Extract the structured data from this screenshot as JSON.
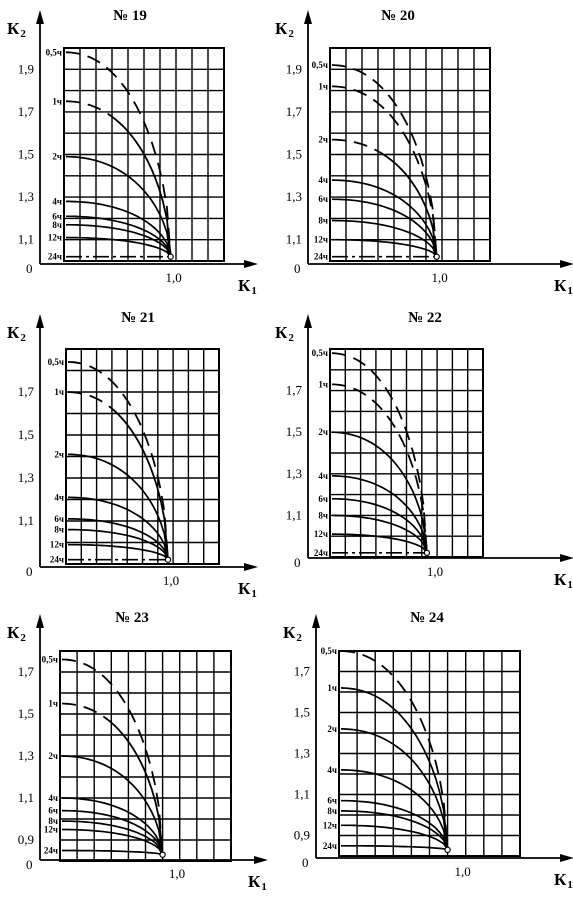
{
  "figure": {
    "axis_symbol": "К",
    "x_sub": "1",
    "y_sub": "2",
    "origin_label": "0"
  },
  "chart_data": [
    {
      "type": "line",
      "title": "№ 19",
      "xlabel": "К1",
      "ylabel": "К2",
      "x_ticks": [
        "1,0"
      ],
      "y_ticks": [
        "1,1",
        "1,3",
        "1,5",
        "1,7",
        "1,9"
      ],
      "xlim": [
        0,
        1.5
      ],
      "ylim": [
        1.0,
        2.0
      ],
      "series": [
        {
          "name": "0,5ч",
          "style": "dashed",
          "y0": 1.98,
          "x_end": 1.0,
          "y_end": 1.02
        },
        {
          "name": "1ч",
          "style": "dashed-solid",
          "y0": 1.75,
          "x_end": 1.0,
          "y_end": 1.02
        },
        {
          "name": "2ч",
          "style": "solid",
          "y0": 1.49,
          "x_end": 1.0,
          "y_end": 1.02
        },
        {
          "name": "4ч",
          "style": "solid",
          "y0": 1.28,
          "x_end": 1.0,
          "y_end": 1.02
        },
        {
          "name": "6ч",
          "style": "solid",
          "y0": 1.21,
          "x_end": 1.0,
          "y_end": 1.02
        },
        {
          "name": "8ч",
          "style": "solid",
          "y0": 1.17,
          "x_end": 1.0,
          "y_end": 1.02
        },
        {
          "name": "12ч",
          "style": "solid",
          "y0": 1.11,
          "x_end": 1.0,
          "y_end": 1.02
        },
        {
          "name": "24ч",
          "style": "dashdot",
          "y0": 1.02,
          "x_end": 1.0,
          "y_end": 1.02
        }
      ]
    },
    {
      "type": "line",
      "title": "№ 20",
      "xlabel": "К1",
      "ylabel": "К2",
      "x_ticks": [
        "1,0"
      ],
      "y_ticks": [
        "1,1",
        "1,3",
        "1,5",
        "1,7",
        "1,9"
      ],
      "xlim": [
        0,
        1.5
      ],
      "ylim": [
        1.0,
        2.0
      ],
      "series": [
        {
          "name": "0,5ч",
          "style": "dashed",
          "y0": 1.92,
          "x_end": 1.0,
          "y_end": 1.02
        },
        {
          "name": "1ч",
          "style": "dashed",
          "y0": 1.82,
          "x_end": 1.0,
          "y_end": 1.02
        },
        {
          "name": "2ч",
          "style": "dashed-solid",
          "y0": 1.57,
          "x_end": 1.0,
          "y_end": 1.02
        },
        {
          "name": "4ч",
          "style": "solid",
          "y0": 1.38,
          "x_end": 1.0,
          "y_end": 1.02
        },
        {
          "name": "6ч",
          "style": "solid",
          "y0": 1.29,
          "x_end": 1.0,
          "y_end": 1.02
        },
        {
          "name": "8ч",
          "style": "solid",
          "y0": 1.19,
          "x_end": 1.0,
          "y_end": 1.02
        },
        {
          "name": "12ч",
          "style": "solid",
          "y0": 1.1,
          "x_end": 1.0,
          "y_end": 1.02
        },
        {
          "name": "24ч",
          "style": "dashdot",
          "y0": 1.02,
          "x_end": 1.0,
          "y_end": 1.02
        }
      ]
    },
    {
      "type": "line",
      "title": "№ 21",
      "xlabel": "К1",
      "ylabel": "К2",
      "x_ticks": [
        "1,0"
      ],
      "y_ticks": [
        "1,1",
        "1,3",
        "1,5",
        "1,7"
      ],
      "xlim": [
        0,
        1.5
      ],
      "ylim": [
        0.9,
        1.9
      ],
      "series": [
        {
          "name": "0,5ч",
          "style": "dashed",
          "y0": 1.84,
          "x_end": 1.0,
          "y_end": 0.92
        },
        {
          "name": "1ч",
          "style": "dashed-solid",
          "y0": 1.7,
          "x_end": 1.0,
          "y_end": 0.92
        },
        {
          "name": "2ч",
          "style": "solid",
          "y0": 1.41,
          "x_end": 1.0,
          "y_end": 0.92
        },
        {
          "name": "4ч",
          "style": "solid",
          "y0": 1.21,
          "x_end": 1.0,
          "y_end": 0.92
        },
        {
          "name": "6ч",
          "style": "solid",
          "y0": 1.11,
          "x_end": 1.0,
          "y_end": 0.92
        },
        {
          "name": "8ч",
          "style": "solid",
          "y0": 1.06,
          "x_end": 1.0,
          "y_end": 0.92
        },
        {
          "name": "12ч",
          "style": "solid",
          "y0": 0.99,
          "x_end": 1.0,
          "y_end": 0.92
        },
        {
          "name": "24ч",
          "style": "dashdot",
          "y0": 0.92,
          "x_end": 1.0,
          "y_end": 0.92
        }
      ]
    },
    {
      "type": "line",
      "title": "№ 22",
      "xlabel": "К1",
      "ylabel": "К2",
      "x_ticks": [
        "1,0"
      ],
      "y_ticks": [
        "1,1",
        "1,3",
        "1,5",
        "1,7"
      ],
      "xlim": [
        0,
        1.5
      ],
      "ylim": [
        0.9,
        1.9
      ],
      "series": [
        {
          "name": "0,5ч",
          "style": "dashed",
          "y0": 1.88,
          "x_end": 0.95,
          "y_end": 0.92
        },
        {
          "name": "1ч",
          "style": "dashed",
          "y0": 1.73,
          "x_end": 0.95,
          "y_end": 0.92
        },
        {
          "name": "2ч",
          "style": "solid",
          "y0": 1.5,
          "x_end": 0.95,
          "y_end": 0.92
        },
        {
          "name": "4ч",
          "style": "solid",
          "y0": 1.29,
          "x_end": 0.95,
          "y_end": 0.92
        },
        {
          "name": "6ч",
          "style": "solid",
          "y0": 1.18,
          "x_end": 0.95,
          "y_end": 0.92
        },
        {
          "name": "8ч",
          "style": "solid",
          "y0": 1.1,
          "x_end": 0.95,
          "y_end": 0.92
        },
        {
          "name": "12ч",
          "style": "solid",
          "y0": 1.01,
          "x_end": 0.95,
          "y_end": 0.92
        },
        {
          "name": "24ч",
          "style": "dashdot",
          "y0": 0.92,
          "x_end": 0.95,
          "y_end": 0.92
        }
      ]
    },
    {
      "type": "line",
      "title": "№ 23",
      "xlabel": "К1",
      "ylabel": "К2",
      "x_ticks": [
        "1,0"
      ],
      "y_ticks": [
        "0,9",
        "1,1",
        "1,3",
        "1,5",
        "1,7"
      ],
      "xlim": [
        0,
        1.5
      ],
      "ylim": [
        0.8,
        1.8
      ],
      "series": [
        {
          "name": "0,5ч",
          "style": "dashed",
          "y0": 1.76,
          "x_end": 0.9,
          "y_end": 0.83
        },
        {
          "name": "1ч",
          "style": "dashed-solid",
          "y0": 1.55,
          "x_end": 0.9,
          "y_end": 0.83
        },
        {
          "name": "2ч",
          "style": "solid",
          "y0": 1.3,
          "x_end": 0.9,
          "y_end": 0.83
        },
        {
          "name": "4ч",
          "style": "solid",
          "y0": 1.1,
          "x_end": 0.9,
          "y_end": 0.83
        },
        {
          "name": "6ч",
          "style": "solid",
          "y0": 1.04,
          "x_end": 0.9,
          "y_end": 0.83
        },
        {
          "name": "8ч",
          "style": "solid",
          "y0": 0.99,
          "x_end": 0.9,
          "y_end": 0.83
        },
        {
          "name": "12ч",
          "style": "solid",
          "y0": 0.95,
          "x_end": 0.9,
          "y_end": 0.83
        },
        {
          "name": "24ч",
          "style": "solid",
          "y0": 0.85,
          "x_end": 0.9,
          "y_end": 0.83
        }
      ]
    },
    {
      "type": "line",
      "title": "№ 24",
      "xlabel": "К1",
      "ylabel": "К2",
      "x_ticks": [
        "1,0"
      ],
      "y_ticks": [
        "0,9",
        "1,1",
        "1,3",
        "1,5",
        "1,7"
      ],
      "xlim": [
        0,
        1.5
      ],
      "ylim": [
        0.8,
        1.8
      ],
      "series": [
        {
          "name": "0,5ч",
          "style": "dashed",
          "y0": 1.8,
          "x_end": 0.9,
          "y_end": 0.83
        },
        {
          "name": "1ч",
          "style": "solid",
          "y0": 1.62,
          "x_end": 0.9,
          "y_end": 0.83
        },
        {
          "name": "2ч",
          "style": "solid",
          "y0": 1.42,
          "x_end": 0.9,
          "y_end": 0.83
        },
        {
          "name": "4ч",
          "style": "solid",
          "y0": 1.22,
          "x_end": 0.9,
          "y_end": 0.83
        },
        {
          "name": "6ч",
          "style": "solid",
          "y0": 1.07,
          "x_end": 0.9,
          "y_end": 0.83
        },
        {
          "name": "8ч",
          "style": "solid",
          "y0": 1.02,
          "x_end": 0.9,
          "y_end": 0.83
        },
        {
          "name": "12ч",
          "style": "solid",
          "y0": 0.95,
          "x_end": 0.9,
          "y_end": 0.83
        },
        {
          "name": "24ч",
          "style": "solid",
          "y0": 0.85,
          "x_end": 0.9,
          "y_end": 0.83
        }
      ]
    }
  ]
}
